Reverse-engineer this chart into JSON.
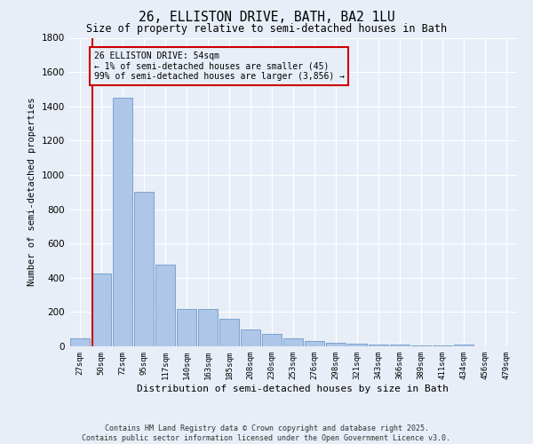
{
  "title": "26, ELLISTON DRIVE, BATH, BA2 1LU",
  "subtitle": "Size of property relative to semi-detached houses in Bath",
  "xlabel": "Distribution of semi-detached houses by size in Bath",
  "ylabel": "Number of semi-detached properties",
  "property_label": "26 ELLISTON DRIVE: 54sqm",
  "pct_smaller": 1,
  "count_smaller": 45,
  "pct_larger": 99,
  "count_larger": 3856,
  "bin_labels": [
    "27sqm",
    "50sqm",
    "72sqm",
    "95sqm",
    "117sqm",
    "140sqm",
    "163sqm",
    "185sqm",
    "208sqm",
    "230sqm",
    "253sqm",
    "276sqm",
    "298sqm",
    "321sqm",
    "343sqm",
    "366sqm",
    "389sqm",
    "411sqm",
    "434sqm",
    "456sqm",
    "479sqm"
  ],
  "bar_values": [
    45,
    425,
    1450,
    900,
    475,
    215,
    215,
    160,
    100,
    70,
    45,
    30,
    20,
    15,
    10,
    8,
    5,
    3,
    10,
    2,
    2
  ],
  "bar_color": "#aec6e8",
  "bar_edge_color": "#5a8fc2",
  "vline_color": "#cc0000",
  "annotation_box_color": "#cc0000",
  "bg_color": "#e8eef7",
  "grid_color": "#ffffff",
  "ylim": [
    0,
    1800
  ],
  "yticks": [
    0,
    200,
    400,
    600,
    800,
    1000,
    1200,
    1400,
    1600,
    1800
  ],
  "footer_line1": "Contains HM Land Registry data © Crown copyright and database right 2025.",
  "footer_line2": "Contains public sector information licensed under the Open Government Licence v3.0."
}
